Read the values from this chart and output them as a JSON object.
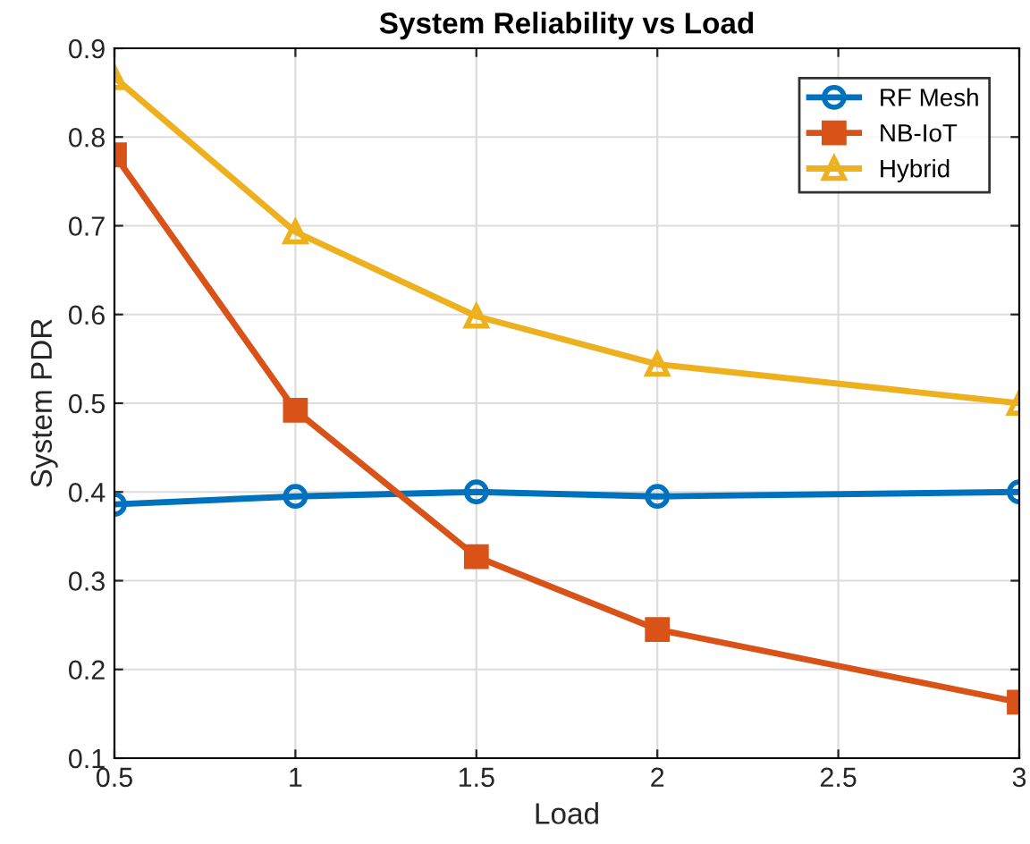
{
  "chart_data": {
    "type": "line",
    "title": "System Reliability vs Load",
    "xlabel": "Load",
    "ylabel": "System PDR",
    "x": [
      0.5,
      1,
      1.5,
      2,
      3
    ],
    "series": [
      {
        "name": "RF Mesh",
        "color": "#0072bd",
        "marker": "circle",
        "values": [
          0.386,
          0.395,
          0.4,
          0.395,
          0.4
        ]
      },
      {
        "name": "NB-IoT",
        "color": "#d95319",
        "marker": "square",
        "values": [
          0.78,
          0.492,
          0.327,
          0.245,
          0.163
        ]
      },
      {
        "name": "Hybrid",
        "color": "#edb120",
        "marker": "triangle",
        "values": [
          0.867,
          0.693,
          0.598,
          0.544,
          0.5
        ]
      }
    ],
    "xlim": [
      0.5,
      3
    ],
    "ylim": [
      0.1,
      0.9
    ],
    "xticks": [
      0.5,
      1,
      1.5,
      2,
      2.5,
      3
    ],
    "yticks": [
      0.1,
      0.2,
      0.3,
      0.4,
      0.5,
      0.6,
      0.7,
      0.8,
      0.9
    ],
    "grid": true,
    "legend": "top right",
    "line_style": "solid"
  }
}
